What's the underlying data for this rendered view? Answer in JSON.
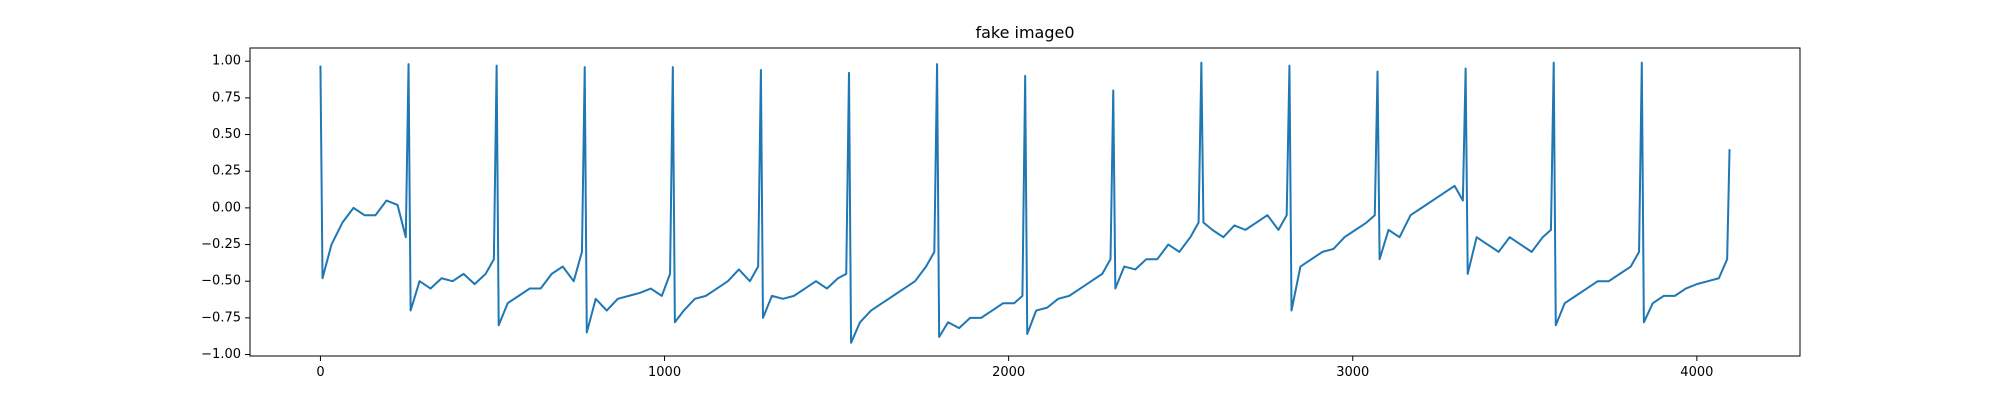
{
  "chart_data": {
    "type": "line",
    "title": "fake image0",
    "x": [
      0,
      6,
      32,
      64,
      96,
      128,
      160,
      192,
      224,
      248,
      256,
      262,
      288,
      320,
      352,
      384,
      416,
      448,
      480,
      504,
      512,
      518,
      544,
      576,
      608,
      640,
      672,
      704,
      736,
      760,
      768,
      774,
      800,
      832,
      864,
      896,
      928,
      960,
      992,
      1016,
      1024,
      1030,
      1056,
      1088,
      1120,
      1152,
      1184,
      1216,
      1248,
      1272,
      1280,
      1286,
      1312,
      1344,
      1376,
      1408,
      1440,
      1472,
      1504,
      1528,
      1536,
      1542,
      1568,
      1600,
      1632,
      1664,
      1696,
      1728,
      1760,
      1784,
      1792,
      1798,
      1824,
      1856,
      1888,
      1920,
      1952,
      1984,
      2016,
      2040,
      2048,
      2054,
      2080,
      2112,
      2144,
      2176,
      2208,
      2240,
      2272,
      2296,
      2304,
      2310,
      2336,
      2368,
      2400,
      2432,
      2464,
      2496,
      2528,
      2552,
      2560,
      2566,
      2592,
      2624,
      2656,
      2688,
      2720,
      2752,
      2784,
      2808,
      2816,
      2822,
      2848,
      2880,
      2912,
      2944,
      2976,
      3008,
      3040,
      3064,
      3072,
      3078,
      3104,
      3136,
      3168,
      3200,
      3232,
      3264,
      3296,
      3320,
      3328,
      3334,
      3360,
      3392,
      3424,
      3456,
      3488,
      3520,
      3552,
      3576,
      3584,
      3590,
      3616,
      3648,
      3680,
      3712,
      3744,
      3776,
      3808,
      3832,
      3840,
      3846,
      3872,
      3904,
      3936,
      3968,
      4000,
      4032,
      4064,
      4088,
      4095
    ],
    "values": [
      0.97,
      -0.48,
      -0.25,
      -0.1,
      0.0,
      -0.05,
      -0.05,
      0.05,
      0.02,
      -0.2,
      0.98,
      -0.7,
      -0.5,
      -0.55,
      -0.48,
      -0.5,
      -0.45,
      -0.52,
      -0.45,
      -0.35,
      0.97,
      -0.8,
      -0.65,
      -0.6,
      -0.55,
      -0.55,
      -0.45,
      -0.4,
      -0.5,
      -0.3,
      0.96,
      -0.85,
      -0.62,
      -0.7,
      -0.62,
      -0.6,
      -0.58,
      -0.55,
      -0.6,
      -0.45,
      0.96,
      -0.78,
      -0.7,
      -0.62,
      -0.6,
      -0.55,
      -0.5,
      -0.42,
      -0.5,
      -0.4,
      0.94,
      -0.75,
      -0.6,
      -0.62,
      -0.6,
      -0.55,
      -0.5,
      -0.55,
      -0.48,
      -0.45,
      0.92,
      -0.92,
      -0.78,
      -0.7,
      -0.65,
      -0.6,
      -0.55,
      -0.5,
      -0.4,
      -0.3,
      0.98,
      -0.88,
      -0.78,
      -0.82,
      -0.75,
      -0.75,
      -0.7,
      -0.65,
      -0.65,
      -0.6,
      0.9,
      -0.86,
      -0.7,
      -0.68,
      -0.62,
      -0.6,
      -0.55,
      -0.5,
      -0.45,
      -0.35,
      0.8,
      -0.55,
      -0.4,
      -0.42,
      -0.35,
      -0.35,
      -0.25,
      -0.3,
      -0.2,
      -0.1,
      0.99,
      -0.1,
      -0.15,
      -0.2,
      -0.12,
      -0.15,
      -0.1,
      -0.05,
      -0.15,
      -0.05,
      0.97,
      -0.7,
      -0.4,
      -0.35,
      -0.3,
      -0.28,
      -0.2,
      -0.15,
      -0.1,
      -0.05,
      0.93,
      -0.35,
      -0.15,
      -0.2,
      -0.05,
      0.0,
      0.05,
      0.1,
      0.15,
      0.05,
      0.95,
      -0.45,
      -0.2,
      -0.25,
      -0.3,
      -0.2,
      -0.25,
      -0.3,
      -0.2,
      -0.15,
      0.99,
      -0.8,
      -0.65,
      -0.6,
      -0.55,
      -0.5,
      -0.5,
      -0.45,
      -0.4,
      -0.3,
      0.99,
      -0.78,
      -0.65,
      -0.6,
      -0.6,
      -0.55,
      -0.52,
      -0.5,
      -0.48,
      -0.35,
      0.4
    ],
    "color": "#1f77b4",
    "xlim": [
      -204.75,
      4299.75
    ],
    "xticks": [
      0,
      1000,
      2000,
      3000,
      4000
    ],
    "ylim": [
      -1.01,
      1.09
    ],
    "yticks": [
      {
        "value": -1,
        "label": "−1.00"
      },
      {
        "value": -0.75,
        "label": "−0.75"
      },
      {
        "value": -0.5,
        "label": "−0.50"
      },
      {
        "value": -0.25,
        "label": "−0.25"
      },
      {
        "value": 0,
        "label": "0.00"
      },
      {
        "value": 0.25,
        "label": "0.25"
      },
      {
        "value": 0.5,
        "label": "0.50"
      },
      {
        "value": 0.75,
        "label": "0.75"
      },
      {
        "value": 1,
        "label": "1.00"
      }
    ],
    "grid": false
  }
}
